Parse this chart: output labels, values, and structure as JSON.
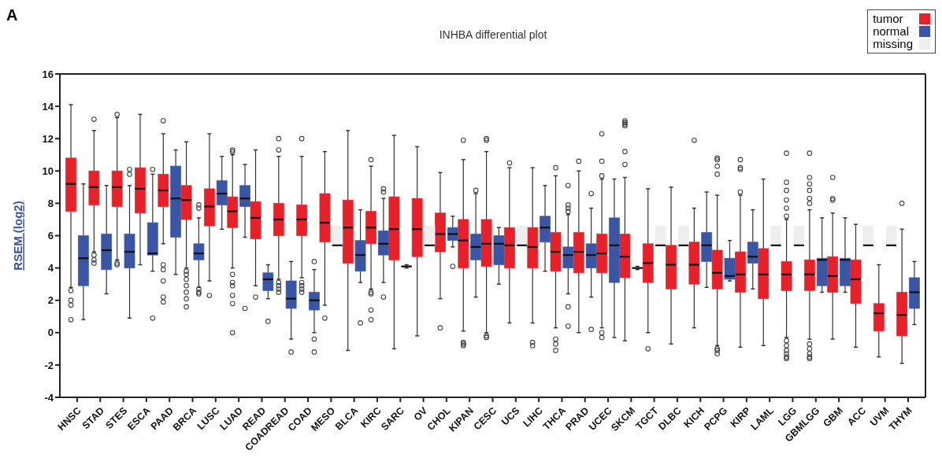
{
  "chart_data": {
    "type": "box",
    "title": "INHBA differential plot",
    "ylabel": "RSEM (log2)",
    "annotations": [
      "A"
    ],
    "categories": [
      "HNSC",
      "STAD",
      "STES",
      "ESCA",
      "PAAD",
      "BRCA",
      "LUSC",
      "LUAD",
      "READ",
      "COADREAD",
      "COAD",
      "MESO",
      "BLCA",
      "KIRC",
      "SARC",
      "OV",
      "CHOL",
      "KIPAN",
      "CESC",
      "UCS",
      "LIHC",
      "THCA",
      "PRAD",
      "UCEC",
      "SKCM",
      "TGCT",
      "DLBC",
      "KICH",
      "PCPG",
      "KIRP",
      "LAML",
      "LGG",
      "GBMLGG",
      "GBM",
      "ACC",
      "UVM",
      "THYM"
    ],
    "ylim": [
      -4,
      16
    ],
    "yticks": [
      -4,
      -2,
      0,
      2,
      4,
      6,
      8,
      10,
      12,
      14,
      16
    ],
    "legend": "top right",
    "marker": "circle",
    "series": [
      {
        "name": "tumor",
        "color": "#e8202a",
        "boxes": [
          {
            "low": 2.8,
            "q1": 7.5,
            "median": 9.2,
            "q3": 10.8,
            "high": 14.1,
            "outliers": [
              2.6,
              2.0,
              1.7,
              0.8
            ]
          },
          {
            "low": 5.0,
            "q1": 7.9,
            "median": 9.0,
            "q3": 10.0,
            "high": 12.5,
            "outliers": [
              13.2,
              4.8,
              4.5,
              4.3
            ]
          },
          {
            "low": 4.5,
            "q1": 7.8,
            "median": 9.0,
            "q3": 10.0,
            "high": 13.3,
            "outliers": [
              13.5,
              4.3,
              4.2
            ]
          },
          {
            "low": 4.2,
            "q1": 7.4,
            "median": 8.9,
            "q3": 10.2,
            "high": 13.5
          },
          {
            "low": 5.5,
            "q1": 7.8,
            "median": 8.8,
            "q3": 9.8,
            "high": 12.3,
            "outliers": [
              13.1,
              4.2,
              3.9,
              3.2,
              2.2,
              1.9
            ]
          },
          {
            "low": 4.0,
            "q1": 7.0,
            "median": 8.2,
            "q3": 9.1,
            "high": 11.8,
            "outliers": [
              3.8,
              3.6,
              3.3,
              2.9,
              2.5,
              2.1,
              1.6
            ]
          },
          {
            "low": 3.2,
            "q1": 6.6,
            "median": 7.8,
            "q3": 8.9,
            "high": 12.3,
            "outliers": [
              2.3
            ]
          },
          {
            "low": 4.0,
            "q1": 6.5,
            "median": 7.5,
            "q3": 8.4,
            "high": 11.0,
            "outliers": [
              11.3,
              11.2,
              3.6,
              3.1,
              2.9,
              2.3,
              1.8,
              0.0
            ]
          },
          {
            "low": 2.9,
            "q1": 5.8,
            "median": 7.1,
            "q3": 8.1,
            "high": 11.3,
            "outliers": [
              2.2
            ]
          },
          {
            "low": 3.3,
            "q1": 6.0,
            "median": 7.0,
            "q3": 8.0,
            "high": 10.9,
            "outliers": [
              12.0,
              11.3,
              3.1,
              2.9,
              2.7,
              2.5
            ]
          },
          {
            "low": 3.4,
            "q1": 6.0,
            "median": 7.0,
            "q3": 7.9,
            "high": 10.9,
            "outliers": [
              12.0,
              3.1,
              2.9,
              2.7,
              2.5
            ]
          },
          {
            "low": 1.7,
            "q1": 5.6,
            "median": 6.8,
            "q3": 8.6,
            "high": 11.2,
            "outliers": [
              0.9
            ]
          },
          {
            "low": -1.1,
            "q1": 4.3,
            "median": 6.5,
            "q3": 8.2,
            "high": 12.5
          },
          {
            "low": 2.7,
            "q1": 5.5,
            "median": 6.5,
            "q3": 7.5,
            "high": 10.3,
            "outliers": [
              10.7,
              2.5,
              2.4,
              1.4,
              0.8
            ]
          },
          {
            "low": -1.0,
            "q1": 4.5,
            "median": 6.4,
            "q3": 8.4,
            "high": 12.2
          },
          {
            "low": -0.2,
            "q1": 4.7,
            "median": 6.4,
            "q3": 8.3,
            "high": 11.5
          },
          {
            "low": 2.1,
            "q1": 5.0,
            "median": 6.1,
            "q3": 7.4,
            "high": 9.9,
            "outliers": [
              0.3
            ]
          },
          {
            "low": 0.1,
            "q1": 4.0,
            "median": 5.7,
            "q3": 7.0,
            "high": 10.7,
            "outliers": [
              11.9,
              -0.6,
              -0.7,
              -0.8
            ]
          },
          {
            "low": 0.0,
            "q1": 4.1,
            "median": 5.5,
            "q3": 7.0,
            "high": 11.2,
            "outliers": [
              12.0,
              11.9,
              -0.2,
              -0.3
            ]
          },
          {
            "low": 0.6,
            "q1": 4.0,
            "median": 5.4,
            "q3": 6.5,
            "high": 10.2,
            "outliers": [
              10.5
            ]
          },
          {
            "low": 0.6,
            "q1": 4.0,
            "median": 5.3,
            "q3": 6.5,
            "high": 10.2,
            "outliers": [
              -0.6,
              -0.8
            ]
          },
          {
            "low": 0.3,
            "q1": 3.8,
            "median": 5.0,
            "q3": 6.2,
            "high": 9.7,
            "outliers": [
              10.2,
              -0.4,
              -0.7,
              -1.1
            ]
          },
          {
            "low": 0.0,
            "q1": 3.7,
            "median": 5.0,
            "q3": 6.2,
            "high": 10.0,
            "outliers": [
              10.6
            ]
          },
          {
            "low": 0.3,
            "q1": 3.7,
            "median": 4.9,
            "q3": 6.1,
            "high": 9.5,
            "outliers": [
              12.3,
              10.6,
              9.7,
              0.0,
              -0.3
            ]
          },
          {
            "low": -0.5,
            "q1": 3.4,
            "median": 4.7,
            "q3": 6.1,
            "high": 9.6,
            "outliers": [
              13.1,
              13.0,
              12.9,
              12.8,
              11.2,
              10.4
            ]
          },
          {
            "low": 0.0,
            "q1": 3.1,
            "median": 4.3,
            "q3": 5.5,
            "high": 8.9,
            "outliers": [
              -1.0
            ]
          },
          {
            "low": -0.7,
            "q1": 2.7,
            "median": 4.2,
            "q3": 5.4,
            "high": 9.0
          },
          {
            "low": 0.3,
            "q1": 3.0,
            "median": 4.2,
            "q3": 5.6,
            "high": 7.7,
            "outliers": [
              11.9
            ]
          },
          {
            "low": -0.8,
            "q1": 2.7,
            "median": 3.7,
            "q3": 5.1,
            "high": 8.5,
            "outliers": [
              10.8,
              10.7,
              10.3,
              9.8,
              -1.0,
              -1.1,
              -1.3
            ]
          },
          {
            "low": -0.9,
            "q1": 2.5,
            "median": 3.6,
            "q3": 5.0,
            "high": 8.5,
            "outliers": [
              10.7,
              10.2,
              10.1,
              8.7
            ]
          },
          {
            "low": -0.8,
            "q1": 2.1,
            "median": 3.6,
            "q3": 5.2,
            "high": 9.5
          },
          {
            "low": -0.3,
            "q1": 2.6,
            "median": 3.6,
            "q3": 4.4,
            "high": 7.0,
            "outliers": [
              11.1,
              9.3,
              8.8,
              8.2,
              7.7,
              7.2,
              -0.5,
              -0.8,
              -1.1,
              -1.3,
              -1.5,
              -1.6
            ]
          },
          {
            "low": -0.4,
            "q1": 2.6,
            "median": 3.6,
            "q3": 4.5,
            "high": 7.6,
            "outliers": [
              11.1,
              9.6,
              9.2,
              8.8,
              8.3,
              8.0,
              -0.7,
              -1.0,
              -1.3,
              -1.5,
              -1.6
            ]
          },
          {
            "low": -0.4,
            "q1": 2.5,
            "median": 3.5,
            "q3": 4.7,
            "high": 7.4,
            "outliers": [
              9.6,
              8.3,
              8.2
            ]
          },
          {
            "low": -0.9,
            "q1": 1.8,
            "median": 3.3,
            "q3": 4.5,
            "high": 6.7
          },
          {
            "low": -1.5,
            "q1": 0.1,
            "median": 1.2,
            "q3": 1.8,
            "high": 4.2
          },
          {
            "low": -1.9,
            "q1": -0.2,
            "median": 1.1,
            "q3": 2.5,
            "high": 6.4,
            "outliers": [
              8.0
            ]
          }
        ]
      },
      {
        "name": "normal",
        "color": "#3a55a4",
        "boxes": [
          {
            "low": 0.8,
            "q1": 2.9,
            "median": 4.6,
            "q3": 6.0,
            "high": 9.2
          },
          {
            "low": 2.4,
            "q1": 3.9,
            "median": 5.1,
            "q3": 6.1,
            "high": 9.1
          },
          {
            "low": 0.9,
            "q1": 4.0,
            "median": 5.0,
            "q3": 6.1,
            "high": 9.1,
            "outliers": [
              10.1,
              9.8
            ]
          },
          {
            "low": 3.8,
            "q1": 4.8,
            "median": 4.9,
            "q3": 6.8,
            "high": 9.8,
            "outliers": [
              10.1,
              0.9
            ]
          },
          {
            "low": 3.6,
            "q1": 5.9,
            "median": 8.3,
            "q3": 10.3,
            "high": 11.3
          },
          {
            "low": 2.8,
            "q1": 4.5,
            "median": 4.9,
            "q3": 5.5,
            "high": 7.1,
            "outliers": [
              7.9,
              7.7,
              2.7,
              2.5,
              2.4
            ]
          },
          {
            "low": 6.4,
            "q1": 7.9,
            "median": 8.6,
            "q3": 9.4,
            "high": 10.9
          },
          {
            "low": 5.9,
            "q1": 7.8,
            "median": 8.3,
            "q3": 9.1,
            "high": 10.4,
            "outliers": [
              1.5
            ]
          },
          {
            "low": 2.1,
            "q1": 2.6,
            "median": 3.3,
            "q3": 3.7,
            "high": 4.2,
            "outliers": [
              0.7
            ]
          },
          {
            "low": -0.4,
            "q1": 1.5,
            "median": 2.1,
            "q3": 3.2,
            "high": 4.4,
            "outliers": [
              -1.2
            ]
          },
          {
            "low": 0.0,
            "q1": 1.4,
            "median": 2.0,
            "q3": 2.5,
            "high": 3.9,
            "outliers": [
              4.4,
              -0.4,
              -1.2
            ]
          },
          null,
          {
            "low": 3.1,
            "q1": 3.8,
            "median": 4.8,
            "q3": 5.7,
            "high": 7.6,
            "outliers": [
              0.6
            ]
          },
          {
            "low": 3.1,
            "q1": 4.8,
            "median": 5.5,
            "q3": 6.3,
            "high": 8.3,
            "outliers": [
              8.9,
              8.7,
              2.2
            ]
          },
          {
            "low": 4.0,
            "q1": 4.1,
            "median": 4.1,
            "q3": 4.1,
            "high": 4.2
          },
          null,
          {
            "low": 5.3,
            "q1": 5.7,
            "median": 6.1,
            "q3": 6.5,
            "high": 7.2,
            "outliers": [
              4.1
            ]
          },
          {
            "low": 2.2,
            "q1": 4.5,
            "median": 5.3,
            "q3": 6.1,
            "high": 8.6,
            "outliers": [
              8.8
            ]
          },
          {
            "low": 3.0,
            "q1": 4.2,
            "median": 5.5,
            "q3": 6.0,
            "high": 6.5
          },
          null,
          {
            "low": 3.8,
            "q1": 5.6,
            "median": 6.5,
            "q3": 7.2,
            "high": 9.1
          },
          {
            "low": 2.4,
            "q1": 4.0,
            "median": 4.8,
            "q3": 5.3,
            "high": 7.3,
            "outliers": [
              9.1,
              7.9,
              7.7,
              7.5,
              1.6,
              0.4
            ]
          },
          {
            "low": 2.2,
            "q1": 4.0,
            "median": 4.8,
            "q3": 5.5,
            "high": 7.7,
            "outliers": [
              8.6,
              0.2
            ]
          },
          {
            "low": -0.3,
            "q1": 3.1,
            "median": 5.4,
            "q3": 7.1,
            "high": 9.5
          },
          {
            "low": 3.9,
            "q1": 4.0,
            "median": 4.0,
            "q3": 4.0,
            "high": 4.1
          },
          null,
          null,
          {
            "low": 2.8,
            "q1": 4.4,
            "median": 5.4,
            "q3": 6.2,
            "high": 8.7
          },
          {
            "low": 3.2,
            "q1": 3.3,
            "median": 3.5,
            "q3": 4.6,
            "high": 5.7
          },
          {
            "low": 2.7,
            "q1": 4.3,
            "median": 4.7,
            "q3": 5.6,
            "high": 7.6
          },
          null,
          null,
          {
            "low": 2.5,
            "q1": 2.9,
            "median": 4.5,
            "q3": 4.6,
            "high": 7.1
          },
          {
            "low": 2.5,
            "q1": 2.9,
            "median": 4.5,
            "q3": 4.6,
            "high": 7.1
          },
          null,
          null,
          {
            "low": 0.5,
            "q1": 1.5,
            "median": 2.5,
            "q3": 3.4,
            "high": 4.4
          }
        ]
      },
      {
        "name": "missing",
        "color": "#eeeeee",
        "boxes": [
          null,
          null,
          null,
          null,
          null,
          null,
          null,
          null,
          null,
          null,
          null,
          {
            "low": 5.4,
            "q1": 5.4,
            "median": 5.4,
            "q3": 6.6,
            "high": 6.6
          },
          null,
          null,
          null,
          {
            "low": 5.4,
            "q1": 5.4,
            "median": 5.4,
            "q3": 6.6,
            "high": 6.6
          },
          null,
          null,
          null,
          {
            "low": 5.4,
            "q1": 5.4,
            "median": 5.4,
            "q3": 6.6,
            "high": 6.6
          },
          null,
          null,
          null,
          null,
          null,
          {
            "low": 5.4,
            "q1": 5.4,
            "median": 5.4,
            "q3": 6.6,
            "high": 6.6
          },
          {
            "low": 5.4,
            "q1": 5.4,
            "median": 5.4,
            "q3": 6.6,
            "high": 6.6
          },
          null,
          null,
          null,
          {
            "low": 5.4,
            "q1": 5.4,
            "median": 5.4,
            "q3": 6.6,
            "high": 6.6
          },
          {
            "low": 5.4,
            "q1": 5.4,
            "median": 5.4,
            "q3": 6.6,
            "high": 6.6
          },
          null,
          null,
          {
            "low": 5.4,
            "q1": 5.4,
            "median": 5.4,
            "q3": 6.6,
            "high": 6.6
          },
          {
            "low": 5.4,
            "q1": 5.4,
            "median": 5.4,
            "q3": 6.6,
            "high": 6.6
          },
          null
        ]
      }
    ]
  }
}
